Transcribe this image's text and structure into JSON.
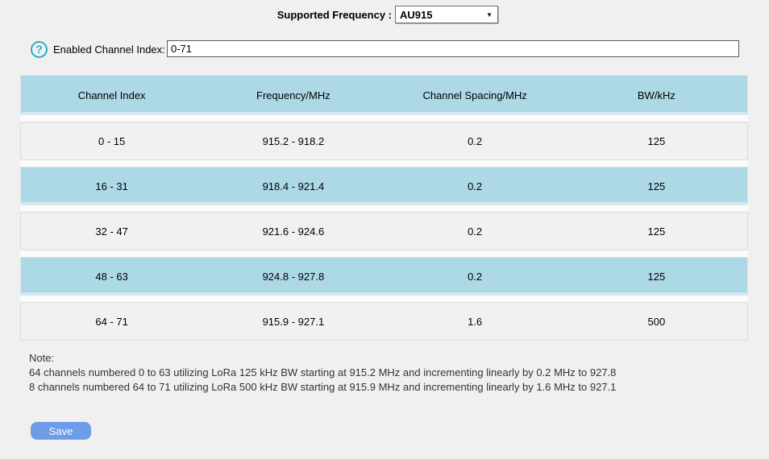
{
  "header": {
    "supported_frequency_label": "Supported Frequency :",
    "frequency_value": "AU915",
    "enabled_channel_label": "Enabled Channel Index:",
    "enabled_channel_value": "0-71"
  },
  "icons": {
    "help_glyph": "?",
    "dropdown_arrow": "▼"
  },
  "table": {
    "columns": [
      "Channel Index",
      "Frequency/MHz",
      "Channel Spacing/MHz",
      "BW/kHz"
    ],
    "rows": [
      {
        "channel_index": "0 - 15",
        "frequency": "915.2 - 918.2",
        "spacing": "0.2",
        "bw": "125",
        "highlighted": false
      },
      {
        "channel_index": "16 - 31",
        "frequency": "918.4 - 921.4",
        "spacing": "0.2",
        "bw": "125",
        "highlighted": true
      },
      {
        "channel_index": "32 - 47",
        "frequency": "921.6 - 924.6",
        "spacing": "0.2",
        "bw": "125",
        "highlighted": false
      },
      {
        "channel_index": "48 - 63",
        "frequency": "924.8 - 927.8",
        "spacing": "0.2",
        "bw": "125",
        "highlighted": true
      },
      {
        "channel_index": "64 - 71",
        "frequency": "915.9 - 927.1",
        "spacing": "1.6",
        "bw": "500",
        "highlighted": false
      }
    ]
  },
  "note": {
    "title": "Note:",
    "lines": [
      "64 channels numbered 0 to 63 utilizing LoRa 125 kHz BW starting at 915.2 MHz and incrementing linearly by 0.2 MHz to 927.8",
      "8 channels numbered 64 to 71 utilizing LoRa 500 kHz BW starting at 915.9 MHz and incrementing linearly by 1.6 MHz to 927.1"
    ]
  },
  "actions": {
    "save_label": "Save"
  },
  "colors": {
    "page_background": "#f0f0f0",
    "row_highlight_blue": "#add8e6",
    "row_gray": "#f1f1f1",
    "save_button_blue": "#6d9ce8",
    "help_icon_teal": "#2aabc8"
  }
}
